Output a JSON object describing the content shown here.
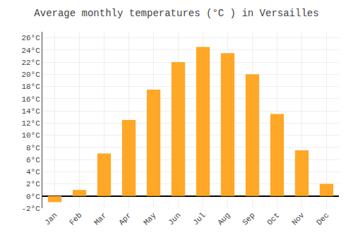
{
  "chart_data": {
    "type": "bar",
    "title": "Average monthly temperatures (°C ) in Versailles",
    "categories": [
      "Jan",
      "Feb",
      "Mar",
      "Apr",
      "May",
      "Jun",
      "Jul",
      "Aug",
      "Sep",
      "Oct",
      "Nov",
      "Dec"
    ],
    "values": [
      -1.0,
      1.0,
      7.0,
      12.5,
      17.5,
      22.0,
      24.5,
      23.5,
      20.0,
      13.5,
      7.5,
      2.0
    ],
    "color": "#FFA726",
    "ylim": [
      -2,
      27
    ],
    "yticks": [
      {
        "value": -2,
        "label": "-2°C"
      },
      {
        "value": 0,
        "label": "0°C"
      },
      {
        "value": 2,
        "label": "2°C"
      },
      {
        "value": 4,
        "label": "4°C"
      },
      {
        "value": 6,
        "label": "6°C"
      },
      {
        "value": 8,
        "label": "8°C"
      },
      {
        "value": 10,
        "label": "10°C"
      },
      {
        "value": 12,
        "label": "12°C"
      },
      {
        "value": 14,
        "label": "14°C"
      },
      {
        "value": 16,
        "label": "16°C"
      },
      {
        "value": 18,
        "label": "18°C"
      },
      {
        "value": 20,
        "label": "20°C"
      },
      {
        "value": 22,
        "label": "22°C"
      },
      {
        "value": 24,
        "label": "24°C"
      },
      {
        "value": 26,
        "label": "26°C"
      }
    ],
    "grid": true
  }
}
